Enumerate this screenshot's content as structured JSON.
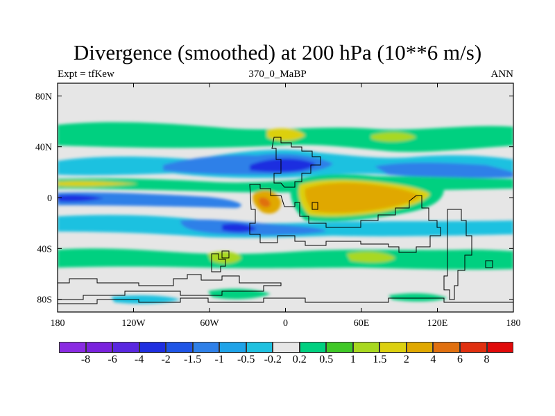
{
  "chart_data": {
    "type": "heatmap",
    "title": "Divergence (smoothed) at 200 hPa (10**6 m/s)",
    "left_label": "Expt = tfKew",
    "center_label": "370_0_MaBP",
    "right_label": "ANN",
    "x_ticks": [
      "180",
      "120W",
      "60W",
      "0",
      "60E",
      "120E",
      "180"
    ],
    "y_ticks": [
      "80N",
      "40N",
      "0",
      "40S",
      "80S"
    ],
    "xlim": [
      -180,
      180
    ],
    "ylim": [
      -90,
      90
    ],
    "legend": {
      "position": "bottom",
      "labels": [
        "-8",
        "-6",
        "-4",
        "-2",
        "-1.5",
        "-1",
        "-0.5",
        "-0.2",
        "0.2",
        "0.5",
        "1",
        "1.5",
        "2",
        "4",
        "6",
        "8"
      ],
      "colors": [
        "#8a2be2",
        "#7a22dd",
        "#5a28e0",
        "#1f2fe0",
        "#1f55e6",
        "#2f80e8",
        "#1fa3e8",
        "#1fc1e0",
        "#e6e6e6",
        "#00d080",
        "#40c828",
        "#a8d820",
        "#dcd010",
        "#e0a800",
        "#e07010",
        "#e03010",
        "#e00a0a"
      ]
    }
  }
}
